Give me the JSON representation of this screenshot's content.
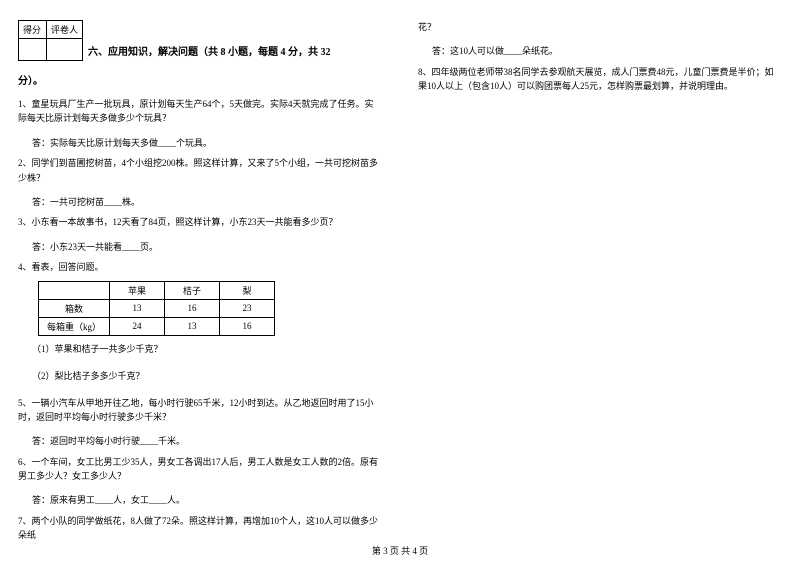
{
  "scorebox": {
    "score_label": "得分",
    "grader_label": "评卷人"
  },
  "section": {
    "title": "六、应用知识，解决问题（共 8 小题，每题 4 分，共 32",
    "points_suffix": "分）。"
  },
  "q1": {
    "text": "1、童星玩具厂生产一批玩具，原计划每天生产64个，5天做完。实际4天就完成了任务。实际每天比原计划每天多做多少个玩具？",
    "answer": "答：实际每天比原计划每天多做____个玩具。"
  },
  "q2": {
    "text": "2、同学们到苗圃挖树苗，4个小组挖200株。照这样计算，又来了5个小组，一共可挖树苗多少株？",
    "answer": "答：一共可挖树苗____株。"
  },
  "q3": {
    "text": "3、小东看一本故事书，12天看了84页，照这样计算，小东23天一共能看多少页？",
    "answer": "答：小东23天一共能看____页。"
  },
  "q4": {
    "text": "4、看表，回答问题。",
    "table": {
      "headers": [
        "",
        "苹果",
        "桔子",
        "梨"
      ],
      "rows": [
        [
          "箱数",
          "13",
          "16",
          "23"
        ],
        [
          "每箱重（kg）",
          "24",
          "13",
          "16"
        ]
      ]
    },
    "sub1": "（1）苹果和桔子一共多少千克？",
    "sub2": "（2）梨比桔子多多少千克？"
  },
  "q5": {
    "text": "5、一辆小汽车从甲地开往乙地，每小时行驶65千米，12小时到达。从乙地返回时用了15小时，返回时平均每小时行驶多少千米？",
    "answer": "答：返回时平均每小时行驶____千米。"
  },
  "q6": {
    "text": "6、一个车间，女工比男工少35人，男女工各调出17人后，男工人数是女工人数的2倍。原有男工多少人？女工多少人？",
    "answer": "答：原来有男工____人，女工____人。"
  },
  "q7": {
    "text": "7、两个小队的同学做纸花，8人做了72朵。照这样计算，再增加10个人，这10人可以做多少朵纸"
  },
  "q7b": {
    "cont": "花？",
    "answer": "答：这10人可以做____朵纸花。"
  },
  "q8": {
    "text": "8、四年级两位老师带38名同学去参观航天展览，成人门票费48元，儿童门票费是半价；如果10人以上（包含10人）可以购团票每人25元，怎样购票最划算，并说明理由。"
  },
  "footer": "第 3 页 共 4 页"
}
